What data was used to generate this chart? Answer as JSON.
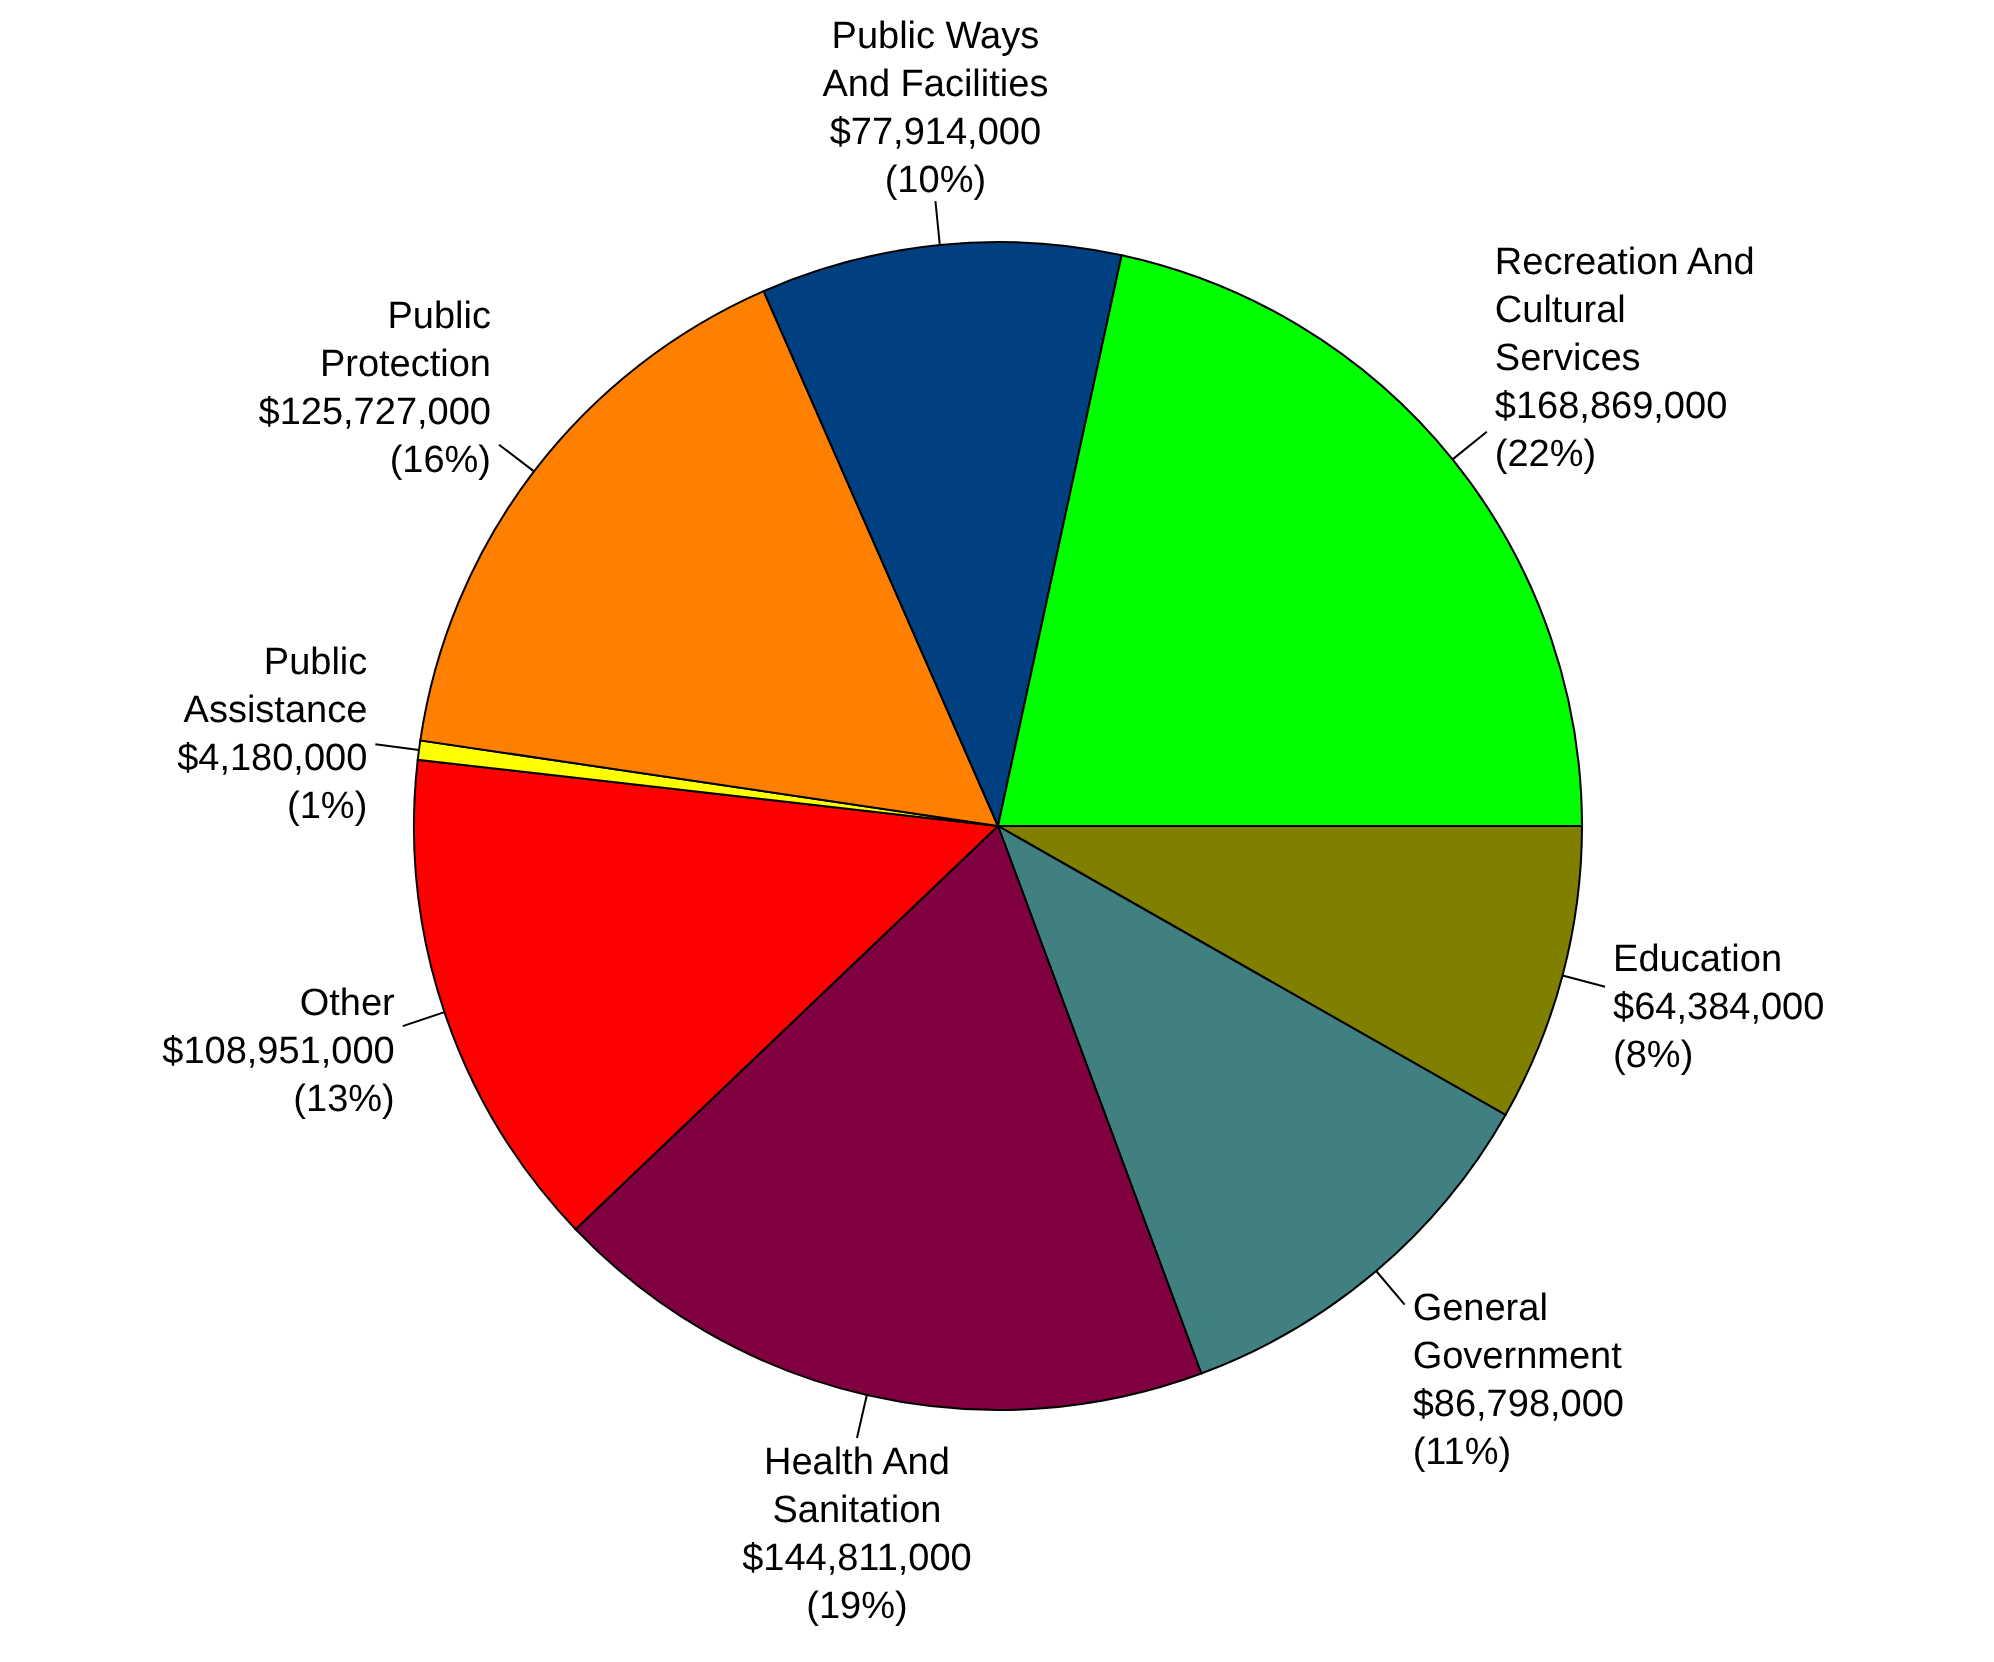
{
  "chart_data": {
    "type": "pie",
    "categories": [
      "Education",
      "General\nGovernment",
      "Health And\nSanitation",
      "Other",
      "Public\nAssistance",
      "Public\nProtection",
      "Public Ways\nAnd Facilities",
      "Recreation And\nCultural\nServices"
    ],
    "values": [
      64384000,
      86798000,
      144811000,
      108951000,
      4180000,
      125727000,
      77914000,
      168869000
    ],
    "colors": [
      "#808000",
      "#408080",
      "#800040",
      "#ff0000",
      "#ffff00",
      "#ff8000",
      "#004080",
      "#00ff00"
    ],
    "value_labels": [
      "$64,384,000\n(8%)",
      "$86,798,000\n(11%)",
      "$144,811,000\n(19%)",
      "$108,951,000\n(13%)",
      "$4,180,000\n(1%)",
      "$125,727,000\n(16%)",
      "$77,914,000\n(10%)",
      "$168,869,000\n(22%)"
    ]
  }
}
